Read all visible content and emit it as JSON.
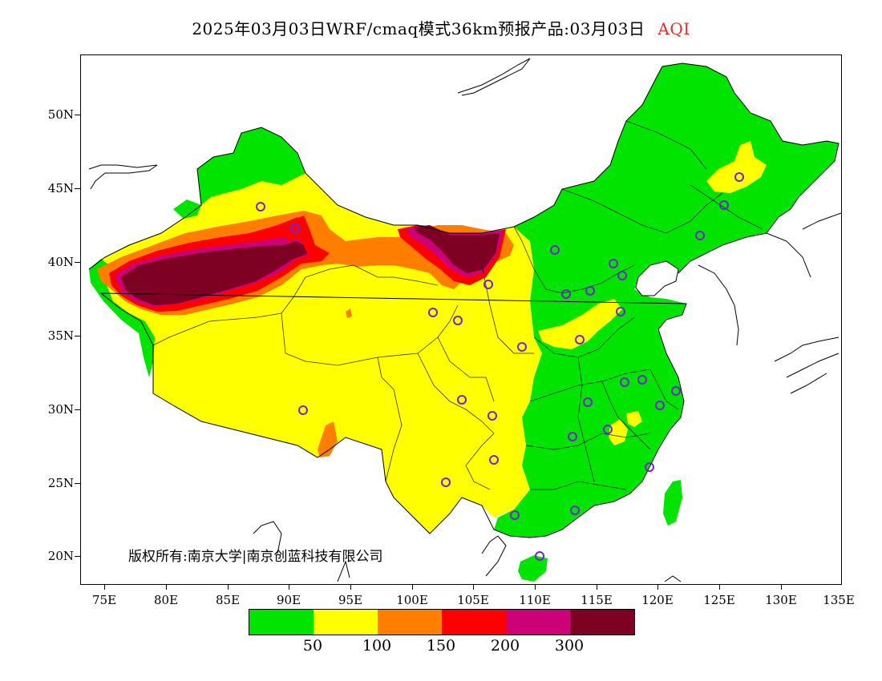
{
  "title": {
    "main": "2025年03月03日WRF/cmaq模式36km预报产品:03月03日",
    "variable": "AQI"
  },
  "lat_ticks": [
    "50N",
    "45N",
    "40N",
    "35N",
    "30N",
    "25N",
    "20N"
  ],
  "lon_ticks": [
    "75E",
    "80E",
    "85E",
    "90E",
    "95E",
    "100E",
    "105E",
    "110E",
    "115E",
    "120E",
    "125E",
    "130E",
    "135E"
  ],
  "copyright": "版权所有:南京大学|南京创蓝科技有限公司",
  "legend": {
    "colors": [
      "#00e400",
      "#ffff00",
      "#ff7e00",
      "#ff0000",
      "#cc0077",
      "#7e0023"
    ],
    "labels": [
      "50",
      "100",
      "150",
      "200",
      "300"
    ]
  }
}
